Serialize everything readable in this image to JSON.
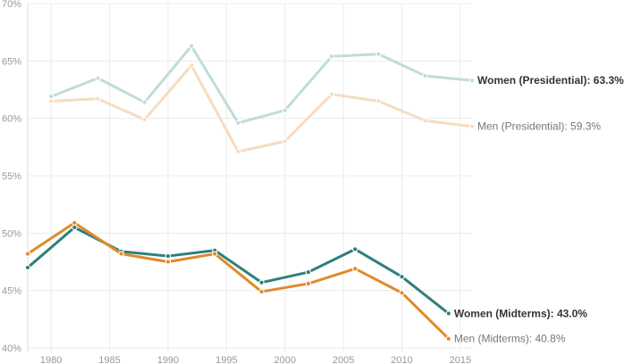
{
  "chart_data": {
    "type": "line",
    "x_ticks": [
      1980,
      1985,
      1990,
      1995,
      2000,
      2005,
      2010,
      2015
    ],
    "y_ticks": [
      "70%",
      "65%",
      "60%",
      "55%",
      "50%",
      "45%",
      "40%"
    ],
    "y_tick_values": [
      70,
      65,
      60,
      55,
      50,
      45,
      40
    ],
    "xlim": [
      1978,
      2016
    ],
    "ylim": [
      40,
      70
    ],
    "grid": true,
    "series": [
      {
        "name": "Women (Presidential)",
        "label": "Women (Presidential): 63.3%",
        "color": "#bfdcd9",
        "label_color": "#333333",
        "bold": true,
        "x": [
          1980,
          1984,
          1988,
          1992,
          1996,
          2000,
          2004,
          2008,
          2012,
          2016
        ],
        "y": [
          61.9,
          63.5,
          61.4,
          66.3,
          59.6,
          60.7,
          65.4,
          65.6,
          63.7,
          63.3
        ]
      },
      {
        "name": "Men (Presidential)",
        "label": "Men (Presidential): 59.3%",
        "color": "#f6dcc0",
        "label_color": "#777777",
        "bold": false,
        "x": [
          1980,
          1984,
          1988,
          1992,
          1996,
          2000,
          2004,
          2008,
          2012,
          2016
        ],
        "y": [
          61.5,
          61.7,
          59.9,
          64.6,
          57.1,
          58.0,
          62.1,
          61.5,
          59.8,
          59.3
        ]
      },
      {
        "name": "Women (Midterms)",
        "label": "Women (Midterms): 43.0%",
        "color": "#2f7f7a",
        "label_color": "#333333",
        "bold": true,
        "x": [
          1978,
          1982,
          1986,
          1990,
          1994,
          1998,
          2002,
          2006,
          2010,
          2014
        ],
        "y": [
          47.0,
          50.5,
          48.4,
          48.0,
          48.5,
          45.7,
          46.6,
          48.6,
          46.2,
          43.0
        ]
      },
      {
        "name": "Men (Midterms)",
        "label": "Men (Midterms): 40.8%",
        "color": "#e08a2a",
        "label_color": "#777777",
        "bold": false,
        "x": [
          1978,
          1982,
          1986,
          1990,
          1994,
          1998,
          2002,
          2006,
          2010,
          2014
        ],
        "y": [
          48.2,
          50.9,
          48.2,
          47.5,
          48.2,
          44.9,
          45.6,
          46.9,
          44.8,
          40.8
        ]
      }
    ]
  }
}
